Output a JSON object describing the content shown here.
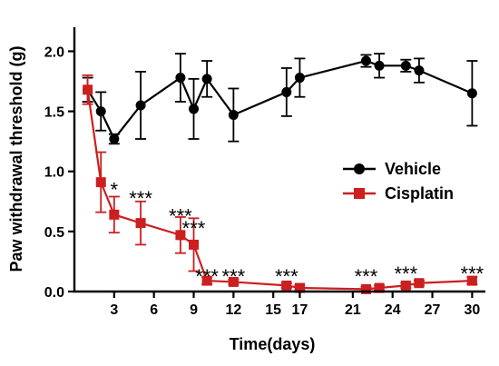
{
  "chart_data": {
    "type": "line",
    "title": "",
    "xlabel": "Time(days)",
    "ylabel": "Paw withdrawal threshold (g)",
    "xlim": [
      0,
      31
    ],
    "ylim": [
      0,
      2.2
    ],
    "xticks": [
      3,
      6,
      9,
      12,
      15,
      17,
      21,
      24,
      27,
      30
    ],
    "yticks": [
      0.0,
      0.5,
      1.0,
      1.5,
      2.0
    ],
    "xtick_labels": [
      "3",
      "6",
      "9",
      "12",
      "15",
      "17",
      "21",
      "24",
      "27",
      "30"
    ],
    "ytick_labels": [
      "0.0",
      "0.5",
      "1.0",
      "1.5",
      "2.0"
    ],
    "legend_position": "right-middle",
    "grid": false,
    "series": [
      {
        "name": "Vehicle",
        "color": "#000000",
        "marker": "circle",
        "points": [
          {
            "x": 1,
            "y": 1.68,
            "err": 0.1
          },
          {
            "x": 2,
            "y": 1.5,
            "err": 0.16
          },
          {
            "x": 3,
            "y": 1.27,
            "err": 0.04
          },
          {
            "x": 5,
            "y": 1.55,
            "err": 0.28
          },
          {
            "x": 8,
            "y": 1.78,
            "err": 0.2
          },
          {
            "x": 9,
            "y": 1.52,
            "err": 0.25
          },
          {
            "x": 10,
            "y": 1.77,
            "err": 0.15
          },
          {
            "x": 12,
            "y": 1.47,
            "err": 0.22
          },
          {
            "x": 16,
            "y": 1.66,
            "err": 0.2
          },
          {
            "x": 17,
            "y": 1.78,
            "err": 0.16
          },
          {
            "x": 22,
            "y": 1.92,
            "err": 0.05
          },
          {
            "x": 23,
            "y": 1.88,
            "err": 0.1
          },
          {
            "x": 25,
            "y": 1.88,
            "err": 0.05
          },
          {
            "x": 26,
            "y": 1.84,
            "err": 0.1
          },
          {
            "x": 30,
            "y": 1.65,
            "err": 0.27
          }
        ]
      },
      {
        "name": "Cisplatin",
        "color": "#cc1f1f",
        "marker": "square",
        "points": [
          {
            "x": 1,
            "y": 1.68,
            "err": 0.12
          },
          {
            "x": 2,
            "y": 0.91,
            "err": 0.25
          },
          {
            "x": 3,
            "y": 0.64,
            "err": 0.15
          },
          {
            "x": 5,
            "y": 0.57,
            "err": 0.18
          },
          {
            "x": 8,
            "y": 0.47,
            "err": 0.15
          },
          {
            "x": 9,
            "y": 0.39,
            "err": 0.22
          },
          {
            "x": 10,
            "y": 0.09,
            "err": 0.03
          },
          {
            "x": 12,
            "y": 0.08,
            "err": 0.02
          },
          {
            "x": 16,
            "y": 0.05,
            "err": 0.02
          },
          {
            "x": 17,
            "y": 0.03,
            "err": 0.02
          },
          {
            "x": 22,
            "y": 0.02,
            "err": 0.02
          },
          {
            "x": 23,
            "y": 0.03,
            "err": 0.02
          },
          {
            "x": 25,
            "y": 0.05,
            "err": 0.02
          },
          {
            "x": 26,
            "y": 0.07,
            "err": 0.02
          },
          {
            "x": 30,
            "y": 0.09,
            "err": 0.03
          }
        ]
      }
    ],
    "annotations": [
      {
        "text": "*",
        "x": 3,
        "y": 0.85
      },
      {
        "text": "***",
        "x": 5,
        "y": 0.78
      },
      {
        "text": "***",
        "x": 8,
        "y": 0.63
      },
      {
        "text": "***",
        "x": 9,
        "y": 0.53
      },
      {
        "text": "***",
        "x": 10,
        "y": 0.13
      },
      {
        "text": "***",
        "x": 12,
        "y": 0.13
      },
      {
        "text": "***",
        "x": 16,
        "y": 0.13
      },
      {
        "text": "***",
        "x": 22,
        "y": 0.13
      },
      {
        "text": "***",
        "x": 25,
        "y": 0.15
      },
      {
        "text": "***",
        "x": 30,
        "y": 0.15
      }
    ]
  }
}
